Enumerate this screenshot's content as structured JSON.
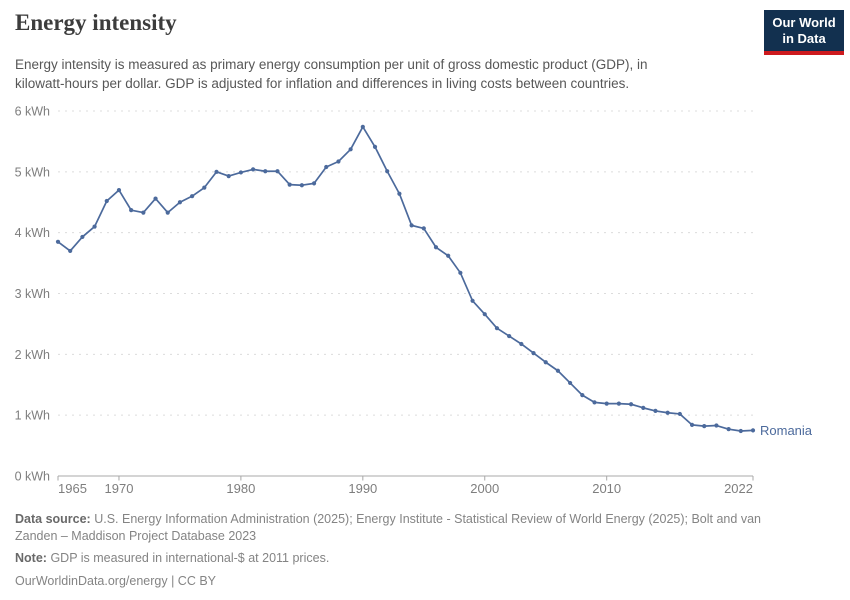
{
  "header": {
    "title": "Energy intensity",
    "subtitle_line1": "Energy intensity is measured as primary energy consumption per unit of gross domestic product (GDP), in",
    "subtitle_line2": "kilowatt-hours per dollar. GDP is adjusted for inflation and differences in living costs between countries.",
    "logo_line1": "Our World",
    "logo_line2": "in Data",
    "logo_bg_color": "#12304f",
    "logo_stripe_color": "#cd1a1e"
  },
  "chart_data": {
    "type": "line",
    "title": "Energy intensity",
    "xlabel": "",
    "ylabel": "",
    "xlim": [
      1965,
      2022
    ],
    "ylim": [
      0,
      6
    ],
    "x_ticks": [
      1965,
      1970,
      1980,
      1990,
      2000,
      2010,
      2022
    ],
    "y_ticks": [
      0,
      1,
      2,
      3,
      4,
      5,
      6
    ],
    "y_tick_format": "{v} kWh",
    "grid": "horizontal-dashed",
    "legend_position": "line-end-label",
    "series": [
      {
        "name": "Romania",
        "color": "#4c6a9c",
        "x": [
          1965,
          1966,
          1967,
          1968,
          1969,
          1970,
          1971,
          1972,
          1973,
          1974,
          1975,
          1976,
          1977,
          1978,
          1979,
          1980,
          1981,
          1982,
          1983,
          1984,
          1985,
          1986,
          1987,
          1988,
          1989,
          1990,
          1991,
          1992,
          1993,
          1994,
          1995,
          1996,
          1997,
          1998,
          1999,
          2000,
          2001,
          2002,
          2003,
          2004,
          2005,
          2006,
          2007,
          2008,
          2009,
          2010,
          2011,
          2012,
          2013,
          2014,
          2015,
          2016,
          2017,
          2018,
          2019,
          2020,
          2021,
          2022
        ],
        "values": [
          3.85,
          3.7,
          3.93,
          4.1,
          4.52,
          4.7,
          4.37,
          4.33,
          4.56,
          4.33,
          4.5,
          4.6,
          4.74,
          5.0,
          4.93,
          4.99,
          5.04,
          5.01,
          5.01,
          4.79,
          4.78,
          4.81,
          5.08,
          5.17,
          5.37,
          5.74,
          5.41,
          5.01,
          4.64,
          4.12,
          4.07,
          3.76,
          3.62,
          3.34,
          2.88,
          2.66,
          2.43,
          2.3,
          2.17,
          2.02,
          1.87,
          1.73,
          1.53,
          1.33,
          1.21,
          1.19,
          1.19,
          1.18,
          1.12,
          1.07,
          1.04,
          1.02,
          0.84,
          0.82,
          0.83,
          0.77,
          0.74,
          0.75
        ]
      }
    ],
    "axis_color": "#a8a8a8",
    "grid_color": "#dcdcdc"
  },
  "footer": {
    "data_source_label": "Data source:",
    "data_source_line1": "U.S. Energy Information Administration (2025); Energy Institute - Statistical Review of World Energy (2025); Bolt and van",
    "data_source_line2": "Zanden – Maddison Project Database 2023",
    "note_label": "Note:",
    "note_text": "GDP is measured in international-$ at 2011 prices.",
    "citation": "OurWorldinData.org/energy | CC BY"
  }
}
